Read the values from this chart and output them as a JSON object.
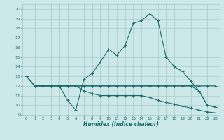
{
  "xlabel": "Humidex (Indice chaleur)",
  "background_color": "#cce8e8",
  "grid_color": "#aacccc",
  "line_color": "#1a6b6b",
  "xlim": [
    -0.5,
    23.5
  ],
  "ylim": [
    9,
    20.5
  ],
  "yticks": [
    9,
    10,
    11,
    12,
    13,
    14,
    15,
    16,
    17,
    18,
    19,
    20
  ],
  "xticks": [
    0,
    1,
    2,
    3,
    4,
    5,
    6,
    7,
    8,
    9,
    10,
    11,
    12,
    13,
    14,
    15,
    16,
    17,
    18,
    19,
    20,
    21,
    22,
    23
  ],
  "series": [
    {
      "x": [
        0,
        1,
        2,
        3,
        4,
        5,
        6,
        7,
        8,
        9,
        10,
        11,
        12,
        13,
        14,
        15,
        16,
        17,
        18,
        19,
        20,
        21,
        22,
        23
      ],
      "y": [
        13,
        12,
        12,
        12,
        12,
        10.5,
        9.5,
        12.7,
        13.3,
        14.5,
        15.8,
        15.2,
        16.2,
        18.5,
        18.8,
        19.5,
        18.8,
        15,
        14,
        13.5,
        12.5,
        11.5,
        10,
        9.8
      ]
    },
    {
      "x": [
        0,
        1,
        2,
        3,
        4,
        5,
        6,
        7,
        8,
        9,
        10,
        11,
        12,
        13,
        14,
        15,
        16,
        17,
        18,
        19,
        20,
        21,
        22,
        23
      ],
      "y": [
        13,
        12,
        12,
        12,
        12,
        12,
        12,
        12,
        12,
        12,
        12,
        12,
        12,
        12,
        12,
        12,
        12,
        12,
        12,
        12,
        12,
        11.5,
        10,
        9.8
      ]
    },
    {
      "x": [
        0,
        1,
        2,
        3,
        4,
        5,
        6,
        7,
        8,
        9,
        10,
        11,
        12,
        13,
        14,
        15,
        16,
        17,
        18,
        19,
        20,
        21,
        22,
        23
      ],
      "y": [
        13,
        12,
        12,
        12,
        12,
        12,
        12,
        12,
        12,
        12,
        12,
        12,
        12,
        12,
        12,
        12,
        12,
        12,
        12,
        12,
        12,
        12,
        12,
        12
      ]
    },
    {
      "x": [
        0,
        1,
        2,
        3,
        4,
        5,
        6,
        7,
        8,
        9,
        10,
        11,
        12,
        13,
        14,
        15,
        16,
        17,
        18,
        19,
        20,
        21,
        22,
        23
      ],
      "y": [
        13,
        12,
        12,
        12,
        12,
        12,
        12,
        11.5,
        11.2,
        11.0,
        11.0,
        11.0,
        11.0,
        11.0,
        11.0,
        10.8,
        10.5,
        10.3,
        10.1,
        9.9,
        9.7,
        9.5,
        9.3,
        9.2
      ]
    }
  ]
}
